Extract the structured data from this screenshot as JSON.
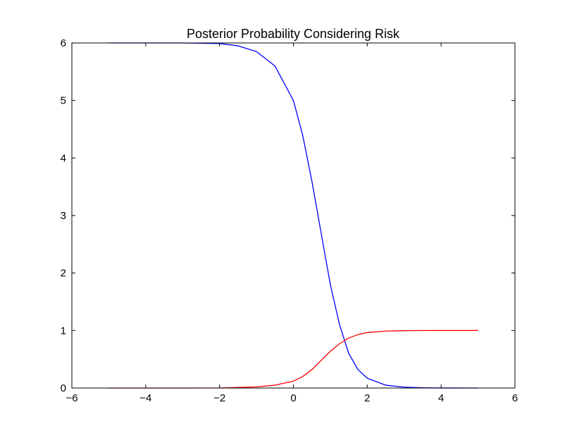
{
  "chart_data": {
    "type": "line",
    "title": "Posterior Probability Considering Risk",
    "xlabel": "",
    "ylabel": "",
    "xlim": [
      -6,
      6
    ],
    "ylim": [
      0,
      6
    ],
    "xticks": [
      -6,
      -4,
      -2,
      0,
      2,
      4,
      6
    ],
    "yticks": [
      0,
      1,
      2,
      3,
      4,
      5,
      6
    ],
    "xtick_labels": [
      "−6",
      "−4",
      "−2",
      "0",
      "2",
      "4",
      "6"
    ],
    "ytick_labels": [
      "0",
      "1",
      "2",
      "3",
      "4",
      "5",
      "6"
    ],
    "grid": false,
    "legend": "none",
    "series": [
      {
        "color": "#0000ff",
        "x": [
          -5,
          -4,
          -3,
          -2,
          -1.5,
          -1,
          -0.5,
          0,
          0.25,
          0.5,
          0.75,
          1,
          1.25,
          1.5,
          1.75,
          2,
          2.5,
          3,
          3.5,
          4,
          5
        ],
        "y": [
          6.0,
          6.0,
          6.0,
          5.99,
          5.95,
          5.85,
          5.6,
          5.0,
          4.4,
          3.6,
          2.7,
          1.8,
          1.1,
          0.6,
          0.32,
          0.17,
          0.05,
          0.015,
          0.005,
          0.001,
          0.0
        ]
      },
      {
        "color": "#ff0000",
        "x": [
          -5,
          -4,
          -3,
          -2,
          -1,
          -0.5,
          0,
          0.25,
          0.5,
          0.75,
          1,
          1.25,
          1.5,
          1.75,
          2,
          2.5,
          3,
          3.5,
          4,
          5
        ],
        "y": [
          0.0,
          0.0,
          0.0,
          0.002,
          0.02,
          0.05,
          0.12,
          0.2,
          0.32,
          0.48,
          0.64,
          0.77,
          0.87,
          0.93,
          0.965,
          0.99,
          0.997,
          0.999,
          1.0,
          1.0
        ]
      }
    ]
  }
}
